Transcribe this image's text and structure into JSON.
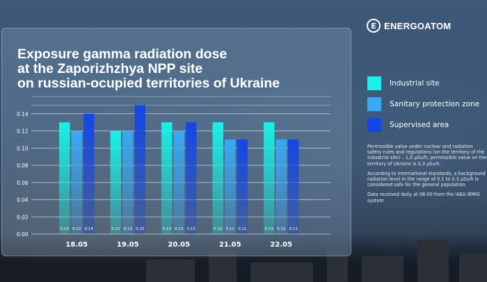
{
  "brand": {
    "name": "ENERGOATOM"
  },
  "title_lines": [
    "Exposure gamma radiation dose",
    "at the Zaporizhzhya NPP site",
    "on russian-ocupied territories of Ukraine"
  ],
  "legend": [
    {
      "label": "Industrial site",
      "color": "#17f2e6"
    },
    {
      "label": "Sanitary protection zone",
      "color": "#39a9f5"
    },
    {
      "label": "Supervised area",
      "color": "#1346e8"
    }
  ],
  "notes": [
    "Permissible value under nuclear and radiation safety rules and regulations (on the territory of the industrial site) – 1,0 μSv/h, permissible value on the territory of Ukraine is 0,3 μSv/h.",
    "According to international standards, a background radiation level in the range of 0.1 to 0.3 μSv/h is considered safe for the general population.",
    "Data received daily at 08:00 from the IAEA IRMIS system"
  ],
  "chart_data": {
    "type": "bar",
    "categories": [
      "18.05",
      "19.05",
      "20.05",
      "21.05",
      "22.05"
    ],
    "series": [
      {
        "name": "Industrial site",
        "values": [
          0.13,
          0.12,
          0.13,
          0.13,
          0.13
        ],
        "labels": [
          "0.13",
          "0.12",
          "0.13",
          "0.13",
          "0.13"
        ],
        "color": "#17f2e6"
      },
      {
        "name": "Sanitary protection zone",
        "values": [
          0.12,
          0.12,
          0.12,
          0.11,
          0.11
        ],
        "labels": [
          "0.12",
          "0.12",
          "0.12",
          "0.11",
          "0.11"
        ],
        "color": "#39a9f5"
      },
      {
        "name": "Supervised area",
        "values": [
          0.14,
          0.15,
          0.13,
          0.11,
          0.11
        ],
        "labels": [
          "0.14",
          "0.15",
          "0.13",
          "0.11",
          "0.11"
        ],
        "color": "#1346e8"
      }
    ],
    "yticks": [
      "0.00",
      "0.02",
      "0.04",
      "0.06",
      "0.08",
      "0.10",
      "0.12",
      "0.14"
    ],
    "ylim": [
      0,
      0.16
    ],
    "grid": true,
    "legend_position": "right"
  }
}
